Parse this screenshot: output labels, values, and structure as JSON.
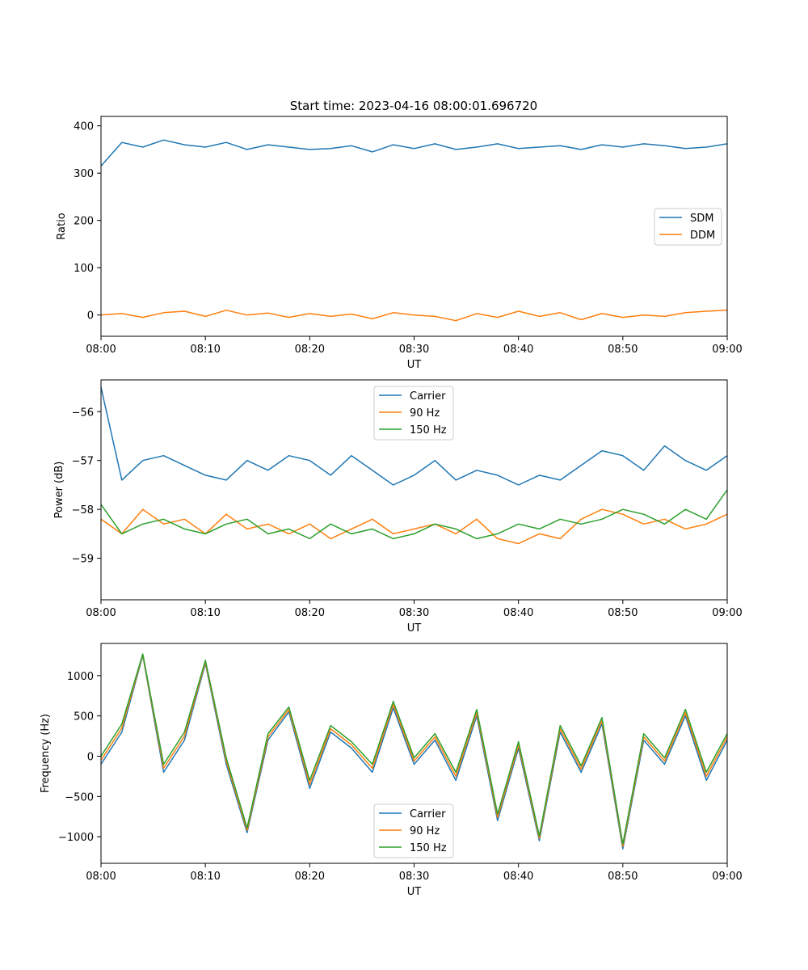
{
  "title": "Start time: 2023-04-16 08:00:01.696720",
  "chart_data": [
    {
      "type": "line",
      "title": "Start time: 2023-04-16 08:00:01.696720",
      "xlabel": "UT",
      "ylabel": "Ratio",
      "xlim": [
        "08:00",
        "09:00"
      ],
      "ylim": [
        -45,
        420
      ],
      "xticks": [
        "08:00",
        "08:10",
        "08:20",
        "08:30",
        "08:40",
        "08:50",
        "09:00"
      ],
      "yticks": [
        0,
        100,
        200,
        300,
        400
      ],
      "grid": false,
      "legend": "center-right",
      "x": [
        "08:00",
        "08:02",
        "08:04",
        "08:06",
        "08:08",
        "08:10",
        "08:12",
        "08:14",
        "08:16",
        "08:18",
        "08:20",
        "08:22",
        "08:24",
        "08:26",
        "08:28",
        "08:30",
        "08:32",
        "08:34",
        "08:36",
        "08:38",
        "08:40",
        "08:42",
        "08:44",
        "08:46",
        "08:48",
        "08:50",
        "08:52",
        "08:54",
        "08:56",
        "08:58",
        "09:00"
      ],
      "series": [
        {
          "name": "SDM",
          "color": "#1f77b4",
          "values": [
            315,
            365,
            355,
            370,
            360,
            355,
            365,
            350,
            360,
            355,
            350,
            352,
            358,
            345,
            360,
            352,
            362,
            350,
            355,
            362,
            352,
            355,
            358,
            350,
            360,
            355,
            362,
            358,
            352,
            355,
            362
          ]
        },
        {
          "name": "DDM",
          "color": "#ff7f0e",
          "values": [
            0,
            3,
            -5,
            5,
            8,
            -3,
            10,
            0,
            4,
            -5,
            3,
            -3,
            2,
            -8,
            5,
            0,
            -3,
            -12,
            3,
            -5,
            8,
            -3,
            5,
            -10,
            3,
            -5,
            0,
            -3,
            5,
            8,
            10
          ]
        }
      ]
    },
    {
      "type": "line",
      "xlabel": "UT",
      "ylabel": "Power (dB)",
      "xlim": [
        "08:00",
        "09:00"
      ],
      "ylim": [
        -59.85,
        -55.35
      ],
      "xticks": [
        "08:00",
        "08:10",
        "08:20",
        "08:30",
        "08:40",
        "08:50",
        "09:00"
      ],
      "yticks": [
        -56,
        -57,
        -58,
        -59
      ],
      "grid": false,
      "legend": "top-center",
      "x": [
        "08:00",
        "08:02",
        "08:04",
        "08:06",
        "08:08",
        "08:10",
        "08:12",
        "08:14",
        "08:16",
        "08:18",
        "08:20",
        "08:22",
        "08:24",
        "08:26",
        "08:28",
        "08:30",
        "08:32",
        "08:34",
        "08:36",
        "08:38",
        "08:40",
        "08:42",
        "08:44",
        "08:46",
        "08:48",
        "08:50",
        "08:52",
        "08:54",
        "08:56",
        "08:58",
        "09:00"
      ],
      "series": [
        {
          "name": "Carrier",
          "color": "#1f77b4",
          "values": [
            -55.5,
            -57.4,
            -57.0,
            -56.9,
            -57.1,
            -57.3,
            -57.4,
            -57.0,
            -57.2,
            -56.9,
            -57.0,
            -57.3,
            -56.9,
            -57.2,
            -57.5,
            -57.3,
            -57.0,
            -57.4,
            -57.2,
            -57.3,
            -57.5,
            -57.3,
            -57.4,
            -57.1,
            -56.8,
            -56.9,
            -57.2,
            -56.7,
            -57.0,
            -57.2,
            -56.9
          ]
        },
        {
          "name": "90 Hz",
          "color": "#ff7f0e",
          "values": [
            -58.2,
            -58.5,
            -58.0,
            -58.3,
            -58.2,
            -58.5,
            -58.1,
            -58.4,
            -58.3,
            -58.5,
            -58.3,
            -58.6,
            -58.4,
            -58.2,
            -58.5,
            -58.4,
            -58.3,
            -58.5,
            -58.2,
            -58.6,
            -58.7,
            -58.5,
            -58.6,
            -58.2,
            -58.0,
            -58.1,
            -58.3,
            -58.2,
            -58.4,
            -58.3,
            -58.1
          ]
        },
        {
          "name": "150 Hz",
          "color": "#2ca02c",
          "values": [
            -57.9,
            -58.5,
            -58.3,
            -58.2,
            -58.4,
            -58.5,
            -58.3,
            -58.2,
            -58.5,
            -58.4,
            -58.6,
            -58.3,
            -58.5,
            -58.4,
            -58.6,
            -58.5,
            -58.3,
            -58.4,
            -58.6,
            -58.5,
            -58.3,
            -58.4,
            -58.2,
            -58.3,
            -58.2,
            -58.0,
            -58.1,
            -58.3,
            -58.0,
            -58.2,
            -57.6
          ]
        }
      ]
    },
    {
      "type": "line",
      "xlabel": "UT",
      "ylabel": "Frequency (Hz)",
      "xlim": [
        "08:00",
        "09:00"
      ],
      "ylim": [
        -1330,
        1400
      ],
      "xticks": [
        "08:00",
        "08:10",
        "08:20",
        "08:30",
        "08:40",
        "08:50",
        "09:00"
      ],
      "yticks": [
        1000,
        500,
        0,
        -500,
        -1000
      ],
      "grid": false,
      "legend": "bottom-center",
      "x": [
        "08:00",
        "08:02",
        "08:04",
        "08:06",
        "08:08",
        "08:10",
        "08:12",
        "08:14",
        "08:16",
        "08:18",
        "08:20",
        "08:22",
        "08:24",
        "08:26",
        "08:28",
        "08:30",
        "08:32",
        "08:34",
        "08:36",
        "08:38",
        "08:40",
        "08:42",
        "08:44",
        "08:46",
        "08:48",
        "08:50",
        "08:52",
        "08:54",
        "08:56",
        "08:58",
        "09:00"
      ],
      "series": [
        {
          "name": "Carrier",
          "color": "#1f77b4",
          "values": [
            -100,
            300,
            1250,
            -200,
            200,
            1150,
            -100,
            -950,
            200,
            550,
            -400,
            300,
            100,
            -200,
            600,
            -100,
            200,
            -300,
            500,
            -800,
            100,
            -1050,
            300,
            -200,
            400,
            -1150,
            200,
            -100,
            500,
            -300,
            200
          ]
        },
        {
          "name": "90 Hz",
          "color": "#ff7f0e",
          "values": [
            -50,
            350,
            1260,
            -150,
            250,
            1170,
            -60,
            -920,
            240,
            580,
            -350,
            340,
            140,
            -150,
            640,
            -60,
            240,
            -250,
            540,
            -760,
            140,
            -1020,
            340,
            -160,
            440,
            -1120,
            240,
            -60,
            540,
            -250,
            240
          ]
        },
        {
          "name": "150 Hz",
          "color": "#2ca02c",
          "values": [
            0,
            400,
            1270,
            -100,
            300,
            1190,
            -20,
            -890,
            280,
            610,
            -300,
            380,
            180,
            -100,
            680,
            -20,
            280,
            -200,
            580,
            -720,
            180,
            -990,
            380,
            -120,
            480,
            -1090,
            280,
            -20,
            580,
            -200,
            280
          ]
        }
      ]
    }
  ]
}
